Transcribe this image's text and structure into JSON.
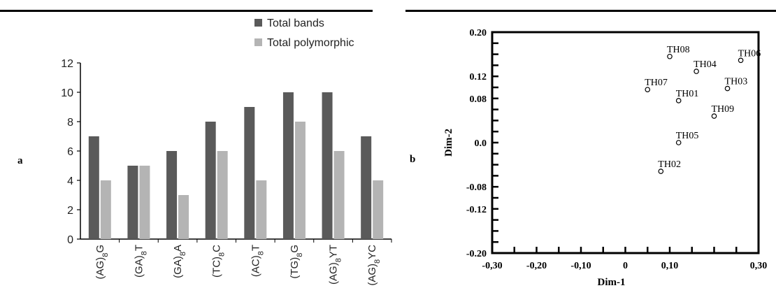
{
  "panels": {
    "left_label": "a",
    "right_label": "b"
  },
  "colors": {
    "total_bands": "#5a5a5a",
    "total_polymorphic": "#b4b4b4",
    "axis": "#000000"
  },
  "chart_data": [
    {
      "type": "bar",
      "categories": [
        "(AG)8G",
        "(GA)8T",
        "(GA)8A",
        "(TC)8C",
        "(AC)8T",
        "(TG)8G",
        "(AG)8YT",
        "(AG)8YC"
      ],
      "category_parts": [
        {
          "pre": "(AG)",
          "sub": "8",
          "post": "G"
        },
        {
          "pre": "(GA)",
          "sub": "8",
          "post": "T"
        },
        {
          "pre": "(GA)",
          "sub": "8",
          "post": "A"
        },
        {
          "pre": "(TC)",
          "sub": "8",
          "post": "C"
        },
        {
          "pre": "(AC)",
          "sub": "8",
          "post": "T"
        },
        {
          "pre": "(TG)",
          "sub": "8",
          "post": "G"
        },
        {
          "pre": "(AG)",
          "sub": "8",
          "post": "YT"
        },
        {
          "pre": "(AG)",
          "sub": "8",
          "post": "YC"
        }
      ],
      "series": [
        {
          "name": "Total bands",
          "values": [
            7,
            5,
            6,
            8,
            9,
            10,
            10,
            7
          ]
        },
        {
          "name": "Total polymorphic",
          "values": [
            4,
            5,
            3,
            6,
            4,
            8,
            6,
            4
          ]
        }
      ],
      "ylim": [
        0,
        12
      ],
      "yticks": [
        "0",
        "2",
        "4",
        "6",
        "8",
        "10",
        "12"
      ],
      "legend_position": "top-right",
      "grid": false
    },
    {
      "type": "scatter",
      "xlabel": "Dim-1",
      "ylabel": "Dim-2",
      "xlim": [
        -0.3,
        0.3
      ],
      "ylim": [
        -0.2,
        0.2
      ],
      "xticks": [
        "-0,30",
        "-0,20",
        "-0,10",
        "0",
        "0,10",
        "0,30"
      ],
      "yticks": [
        "0.20",
        "0.12",
        "0.08",
        "0.0",
        "-0.08",
        "-0.12",
        "-0.20"
      ],
      "points": [
        {
          "label": "TH01",
          "x": 0.12,
          "y": 0.076
        },
        {
          "label": "TH02",
          "x": 0.08,
          "y": -0.052
        },
        {
          "label": "TH03",
          "x": 0.23,
          "y": 0.098
        },
        {
          "label": "TH04",
          "x": 0.16,
          "y": 0.129
        },
        {
          "label": "TH05",
          "x": 0.12,
          "y": 0.0
        },
        {
          "label": "TH06",
          "x": 0.26,
          "y": 0.149
        },
        {
          "label": "TH07",
          "x": 0.05,
          "y": 0.096
        },
        {
          "label": "TH08",
          "x": 0.1,
          "y": 0.156
        },
        {
          "label": "TH09",
          "x": 0.2,
          "y": 0.048
        }
      ],
      "grid": false
    }
  ]
}
